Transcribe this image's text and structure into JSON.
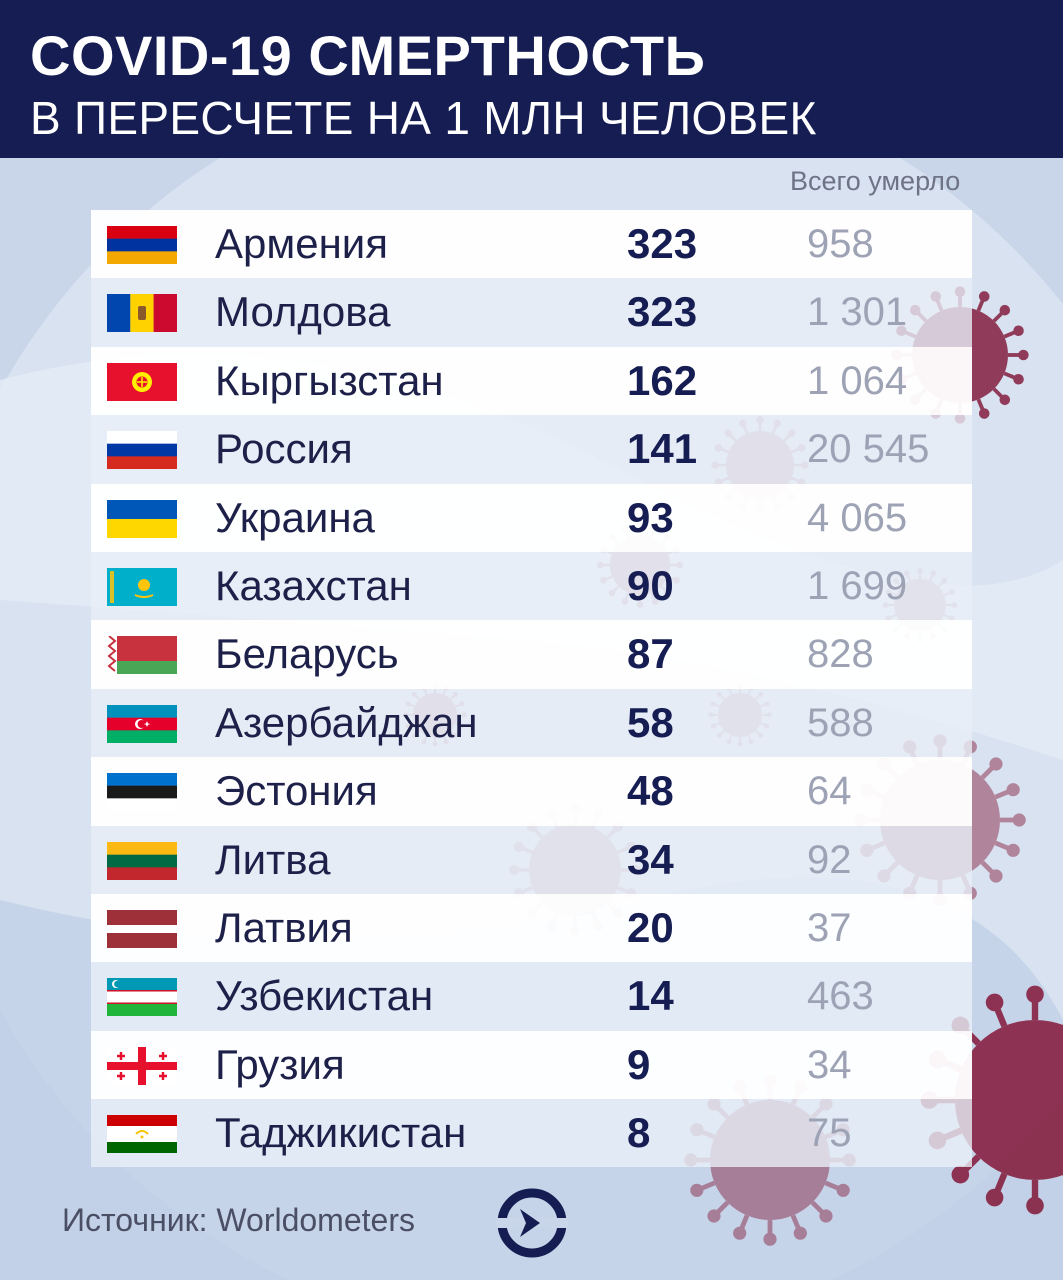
{
  "header": {
    "title": "COVID-19 СМЕРТНОСТЬ",
    "subtitle": "В ПЕРЕСЧЕТЕ НА 1 МЛН ЧЕЛОВЕК"
  },
  "column_header": "Всего умерло",
  "source": "Источник: Worldometers",
  "colors": {
    "header": "#151d52",
    "rate_text": "#151d52",
    "total_text": "#9da3b5",
    "virus": "#8a2a4a"
  },
  "chart_data": {
    "type": "table",
    "title": "COVID-19 СМЕРТНОСТЬ",
    "subtitle": "В ПЕРЕСЧЕТЕ НА 1 МЛН ЧЕЛОВЕК",
    "columns": [
      "",
      "",
      "Всего умерло"
    ],
    "rows": [
      {
        "country": "Армения",
        "rate": 323,
        "rate_label": "323",
        "total_label": "958",
        "flag": "armenia-flag"
      },
      {
        "country": "Молдова",
        "rate": 323,
        "rate_label": "323",
        "total_label": "1 301",
        "flag": "moldova-flag"
      },
      {
        "country": "Кыргызстан",
        "rate": 162,
        "rate_label": "162",
        "total_label": "1 064",
        "flag": "kyrgyzstan-flag"
      },
      {
        "country": "Россия",
        "rate": 141,
        "rate_label": "141",
        "total_label": "20 545",
        "flag": "russia-flag"
      },
      {
        "country": "Украина",
        "rate": 93,
        "rate_label": "93",
        "total_label": "4 065",
        "flag": "ukraine-flag"
      },
      {
        "country": "Казахстан",
        "rate": 90,
        "rate_label": "90",
        "total_label": "1 699",
        "flag": "kazakhstan-flag"
      },
      {
        "country": "Беларусь",
        "rate": 87,
        "rate_label": "87",
        "total_label": "828",
        "flag": "belarus-flag"
      },
      {
        "country": "Азербайджан",
        "rate": 58,
        "rate_label": "58",
        "total_label": "588",
        "flag": "azerbaijan-flag"
      },
      {
        "country": "Эстония",
        "rate": 48,
        "rate_label": "48",
        "total_label": "64",
        "flag": "estonia-flag"
      },
      {
        "country": "Литва",
        "rate": 34,
        "rate_label": "34",
        "total_label": "92",
        "flag": "lithuania-flag"
      },
      {
        "country": "Латвия",
        "rate": 20,
        "rate_label": "20",
        "total_label": "37",
        "flag": "latvia-flag"
      },
      {
        "country": "Узбекистан",
        "rate": 14,
        "rate_label": "14",
        "total_label": "463",
        "flag": "uzbekistan-flag"
      },
      {
        "country": "Грузия",
        "rate": 9,
        "rate_label": "9",
        "total_label": "34",
        "flag": "georgia-flag"
      },
      {
        "country": "Таджикистан",
        "rate": 8,
        "rate_label": "8",
        "total_label": "75",
        "flag": "tajikistan-flag"
      }
    ]
  }
}
